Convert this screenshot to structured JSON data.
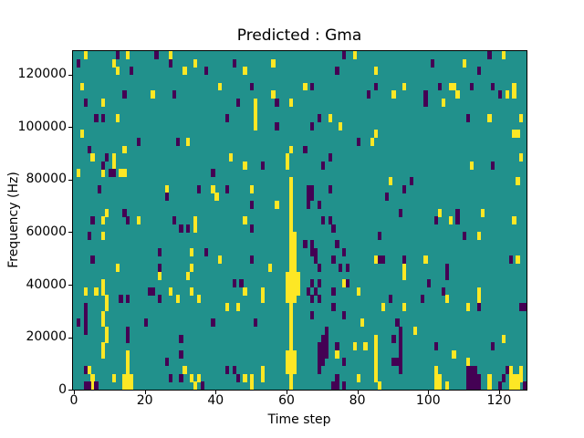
{
  "chart_data": {
    "type": "heatmap",
    "title": "Predicted : Gma",
    "xlabel": "Time step",
    "ylabel": "Frequency (Hz)",
    "xlim": [
      0,
      128
    ],
    "ylim": [
      0,
      129000
    ],
    "x_ticks": [
      0,
      20,
      40,
      60,
      80,
      100,
      120
    ],
    "x_tick_labels": [
      "0",
      "20",
      "40",
      "60",
      "80",
      "100",
      "120"
    ],
    "y_ticks": [
      0,
      20000,
      40000,
      60000,
      80000,
      100000,
      120000
    ],
    "y_tick_labels": [
      "0",
      "20000",
      "40000",
      "60000",
      "80000",
      "100000",
      "120000"
    ],
    "grid": false,
    "legend": null,
    "n_time_steps": 128,
    "n_freq_bins": 43,
    "freq_bin_hz": 3000,
    "colormap": "viridis",
    "colors": {
      "background_value": "#21918c",
      "high_value": "#fde725",
      "low_value": "#440154",
      "figure_background": "#ffffff",
      "text": "#000000"
    },
    "cells": {
      "yellow_points": [
        [
          3,
          42
        ],
        [
          15,
          42
        ],
        [
          27,
          42
        ],
        [
          11,
          41
        ],
        [
          34,
          41
        ],
        [
          12,
          40
        ],
        [
          31,
          40
        ],
        [
          2,
          38
        ],
        [
          41,
          38
        ],
        [
          22,
          37
        ],
        [
          8,
          36
        ],
        [
          12,
          34
        ],
        [
          2,
          32
        ],
        [
          32,
          31
        ],
        [
          14,
          30
        ],
        [
          5,
          29
        ],
        [
          11,
          29
        ],
        [
          79,
          42
        ],
        [
          56,
          41
        ],
        [
          48,
          40
        ],
        [
          65,
          38
        ],
        [
          56,
          37
        ],
        [
          61,
          36
        ],
        [
          72,
          34
        ],
        [
          75,
          33
        ],
        [
          84,
          31
        ],
        [
          61,
          30
        ],
        [
          44,
          29
        ],
        [
          60,
          29
        ],
        [
          51,
          36
        ],
        [
          51,
          35
        ],
        [
          51,
          34
        ],
        [
          51,
          33
        ],
        [
          121,
          42
        ],
        [
          110,
          41
        ],
        [
          85,
          40
        ],
        [
          93,
          38
        ],
        [
          106,
          38
        ],
        [
          107,
          38
        ],
        [
          124,
          38
        ],
        [
          124,
          37
        ],
        [
          90,
          37
        ],
        [
          108,
          37
        ],
        [
          122,
          37
        ],
        [
          104,
          36
        ],
        [
          117,
          34
        ],
        [
          126,
          34
        ],
        [
          85,
          32
        ],
        [
          124,
          32
        ],
        [
          125,
          32
        ],
        [
          126,
          29
        ],
        [
          11,
          28
        ],
        [
          1,
          27
        ],
        [
          8,
          27
        ],
        [
          13,
          27
        ],
        [
          14,
          27
        ],
        [
          26,
          25
        ],
        [
          39,
          25
        ],
        [
          40,
          24
        ],
        [
          9,
          22
        ],
        [
          8,
          21
        ],
        [
          18,
          21
        ],
        [
          34,
          21
        ],
        [
          34,
          20
        ],
        [
          8,
          19
        ],
        [
          33,
          17
        ],
        [
          41,
          16
        ],
        [
          12,
          15
        ],
        [
          33,
          15
        ],
        [
          48,
          28
        ],
        [
          60,
          28
        ],
        [
          50,
          25
        ],
        [
          57,
          23
        ],
        [
          48,
          21
        ],
        [
          55,
          15
        ],
        [
          112,
          28
        ],
        [
          89,
          26
        ],
        [
          125,
          26
        ],
        [
          103,
          22
        ],
        [
          115,
          22
        ],
        [
          106,
          21
        ],
        [
          124,
          21
        ],
        [
          114,
          19
        ],
        [
          85,
          16
        ],
        [
          99,
          16
        ],
        [
          125,
          16
        ],
        [
          93,
          15
        ],
        [
          24,
          14
        ],
        [
          32,
          14
        ],
        [
          8,
          13
        ],
        [
          8,
          12
        ],
        [
          3,
          12
        ],
        [
          6,
          12
        ],
        [
          27,
          12
        ],
        [
          33,
          12
        ],
        [
          9,
          11
        ],
        [
          29,
          11
        ],
        [
          35,
          11
        ],
        [
          9,
          10
        ],
        [
          8,
          9
        ],
        [
          8,
          8
        ],
        [
          9,
          7
        ],
        [
          9,
          6
        ],
        [
          8,
          5
        ],
        [
          8,
          4
        ],
        [
          15,
          4
        ],
        [
          15,
          3
        ],
        [
          15,
          2
        ],
        [
          31,
          2
        ],
        [
          4,
          2
        ],
        [
          14,
          1
        ],
        [
          15,
          1
        ],
        [
          16,
          1
        ],
        [
          5,
          1
        ],
        [
          11,
          1
        ],
        [
          33,
          1
        ],
        [
          35,
          1
        ],
        [
          14,
          0
        ],
        [
          15,
          0
        ],
        [
          16,
          0
        ],
        [
          5,
          0
        ],
        [
          34,
          0
        ],
        [
          76,
          13
        ],
        [
          48,
          12
        ],
        [
          53,
          12
        ],
        [
          80,
          12
        ],
        [
          53,
          11
        ],
        [
          43,
          10
        ],
        [
          46,
          10
        ],
        [
          81,
          8
        ],
        [
          79,
          5
        ],
        [
          82,
          5
        ],
        [
          74,
          4
        ],
        [
          53,
          2
        ],
        [
          80,
          1
        ],
        [
          48,
          1
        ],
        [
          50,
          1
        ],
        [
          53,
          1
        ],
        [
          50,
          0
        ],
        [
          93,
          14
        ],
        [
          114,
          12
        ],
        [
          114,
          11
        ],
        [
          105,
          11
        ],
        [
          87,
          10
        ],
        [
          93,
          10
        ],
        [
          111,
          10
        ],
        [
          96,
          7
        ],
        [
          121,
          6
        ],
        [
          85,
          6
        ],
        [
          85,
          5
        ],
        [
          85,
          4
        ],
        [
          107,
          4
        ],
        [
          85,
          3
        ],
        [
          111,
          3
        ],
        [
          85,
          2
        ],
        [
          102,
          2
        ],
        [
          123,
          2
        ],
        [
          126,
          2
        ],
        [
          85,
          1
        ],
        [
          102,
          1
        ],
        [
          103,
          1
        ],
        [
          117,
          1
        ],
        [
          123,
          1
        ],
        [
          124,
          1
        ],
        [
          125,
          1
        ],
        [
          126,
          1
        ],
        [
          86,
          0
        ],
        [
          102,
          0
        ],
        [
          103,
          0
        ],
        [
          105,
          0
        ],
        [
          117,
          0
        ],
        [
          123,
          0
        ],
        [
          124,
          0
        ],
        [
          125,
          0
        ]
      ],
      "yellow_runs": [
        [
          61,
          0,
          26
        ],
        [
          62,
          15,
          19
        ],
        [
          62,
          11,
          14
        ],
        [
          62,
          2,
          4
        ],
        [
          60,
          11,
          14
        ],
        [
          60,
          2,
          4
        ],
        [
          63,
          12,
          14
        ]
      ],
      "purple_points": [
        [
          12,
          42
        ],
        [
          23,
          42
        ],
        [
          1,
          41
        ],
        [
          27,
          41
        ],
        [
          16,
          40
        ],
        [
          37,
          40
        ],
        [
          14,
          37
        ],
        [
          28,
          37
        ],
        [
          3,
          36
        ],
        [
          6,
          34
        ],
        [
          8,
          34
        ],
        [
          18,
          31
        ],
        [
          29,
          31
        ],
        [
          4,
          30
        ],
        [
          9,
          29
        ],
        [
          76,
          42
        ],
        [
          45,
          41
        ],
        [
          74,
          40
        ],
        [
          50,
          38
        ],
        [
          67,
          38
        ],
        [
          83,
          37
        ],
        [
          46,
          36
        ],
        [
          57,
          36
        ],
        [
          43,
          34
        ],
        [
          69,
          34
        ],
        [
          57,
          33
        ],
        [
          67,
          33
        ],
        [
          80,
          31
        ],
        [
          65,
          30
        ],
        [
          72,
          29
        ],
        [
          117,
          42
        ],
        [
          101,
          41
        ],
        [
          114,
          40
        ],
        [
          85,
          38
        ],
        [
          103,
          38
        ],
        [
          112,
          38
        ],
        [
          118,
          38
        ],
        [
          99,
          37
        ],
        [
          120,
          37
        ],
        [
          99,
          36
        ],
        [
          111,
          34
        ],
        [
          8,
          28
        ],
        [
          10,
          27
        ],
        [
          11,
          27
        ],
        [
          39,
          27
        ],
        [
          7,
          25
        ],
        [
          35,
          25
        ],
        [
          26,
          24
        ],
        [
          14,
          22
        ],
        [
          5,
          21
        ],
        [
          15,
          21
        ],
        [
          28,
          21
        ],
        [
          30,
          20
        ],
        [
          32,
          20
        ],
        [
          4,
          19
        ],
        [
          24,
          17
        ],
        [
          37,
          17
        ],
        [
          5,
          16
        ],
        [
          24,
          15
        ],
        [
          53,
          28
        ],
        [
          70,
          28
        ],
        [
          43,
          25
        ],
        [
          66,
          25
        ],
        [
          67,
          25
        ],
        [
          72,
          25
        ],
        [
          66,
          24
        ],
        [
          67,
          24
        ],
        [
          66,
          23
        ],
        [
          69,
          23
        ],
        [
          50,
          23
        ],
        [
          70,
          21
        ],
        [
          72,
          21
        ],
        [
          50,
          20
        ],
        [
          73,
          20
        ],
        [
          65,
          18
        ],
        [
          67,
          18
        ],
        [
          74,
          18
        ],
        [
          67,
          17
        ],
        [
          68,
          17
        ],
        [
          76,
          17
        ],
        [
          68,
          16
        ],
        [
          73,
          16
        ],
        [
          50,
          16
        ],
        [
          69,
          15
        ],
        [
          75,
          15
        ],
        [
          77,
          15
        ],
        [
          118,
          28
        ],
        [
          95,
          26
        ],
        [
          93,
          25
        ],
        [
          88,
          24
        ],
        [
          92,
          22
        ],
        [
          108,
          22
        ],
        [
          102,
          21
        ],
        [
          108,
          21
        ],
        [
          86,
          19
        ],
        [
          110,
          19
        ],
        [
          86,
          16
        ],
        [
          87,
          16
        ],
        [
          93,
          16
        ],
        [
          123,
          16
        ],
        [
          105,
          15
        ],
        [
          21,
          12
        ],
        [
          22,
          12
        ],
        [
          13,
          11
        ],
        [
          15,
          11
        ],
        [
          24,
          11
        ],
        [
          3,
          10
        ],
        [
          3,
          9
        ],
        [
          1,
          8
        ],
        [
          3,
          8
        ],
        [
          20,
          8
        ],
        [
          39,
          8
        ],
        [
          3,
          7
        ],
        [
          15,
          7
        ],
        [
          15,
          6
        ],
        [
          30,
          6
        ],
        [
          30,
          4
        ],
        [
          26,
          3
        ],
        [
          3,
          2
        ],
        [
          27,
          1
        ],
        [
          30,
          1
        ],
        [
          3,
          0
        ],
        [
          4,
          0
        ],
        [
          6,
          0
        ],
        [
          36,
          0
        ],
        [
          45,
          13
        ],
        [
          47,
          13
        ],
        [
          67,
          13
        ],
        [
          69,
          13
        ],
        [
          77,
          13
        ],
        [
          66,
          12
        ],
        [
          68,
          12
        ],
        [
          73,
          12
        ],
        [
          67,
          11
        ],
        [
          69,
          11
        ],
        [
          73,
          10
        ],
        [
          67,
          9
        ],
        [
          76,
          9
        ],
        [
          51,
          8
        ],
        [
          71,
          7
        ],
        [
          70,
          6
        ],
        [
          71,
          6
        ],
        [
          69,
          5
        ],
        [
          70,
          5
        ],
        [
          71,
          5
        ],
        [
          74,
          5
        ],
        [
          69,
          4
        ],
        [
          70,
          4
        ],
        [
          71,
          4
        ],
        [
          69,
          3
        ],
        [
          70,
          3
        ],
        [
          76,
          3
        ],
        [
          69,
          2
        ],
        [
          45,
          2
        ],
        [
          43,
          2
        ],
        [
          46,
          1
        ],
        [
          74,
          1
        ],
        [
          73,
          0
        ],
        [
          74,
          0
        ],
        [
          76,
          0
        ],
        [
          105,
          14
        ],
        [
          100,
          13
        ],
        [
          104,
          12
        ],
        [
          89,
          11
        ],
        [
          98,
          11
        ],
        [
          114,
          10
        ],
        [
          126,
          10
        ],
        [
          127,
          10
        ],
        [
          91,
          8
        ],
        [
          90,
          6
        ],
        [
          102,
          5
        ],
        [
          118,
          5
        ],
        [
          90,
          3
        ],
        [
          91,
          3
        ],
        [
          111,
          2
        ],
        [
          112,
          2
        ],
        [
          113,
          2
        ],
        [
          122,
          2
        ],
        [
          111,
          1
        ],
        [
          112,
          1
        ],
        [
          113,
          1
        ],
        [
          114,
          1
        ],
        [
          121,
          1
        ],
        [
          111,
          0
        ],
        [
          112,
          0
        ],
        [
          113,
          0
        ],
        [
          114,
          0
        ],
        [
          120,
          0
        ],
        [
          127,
          0
        ]
      ],
      "purple_runs": [
        [
          92,
          2,
          7
        ]
      ]
    }
  }
}
